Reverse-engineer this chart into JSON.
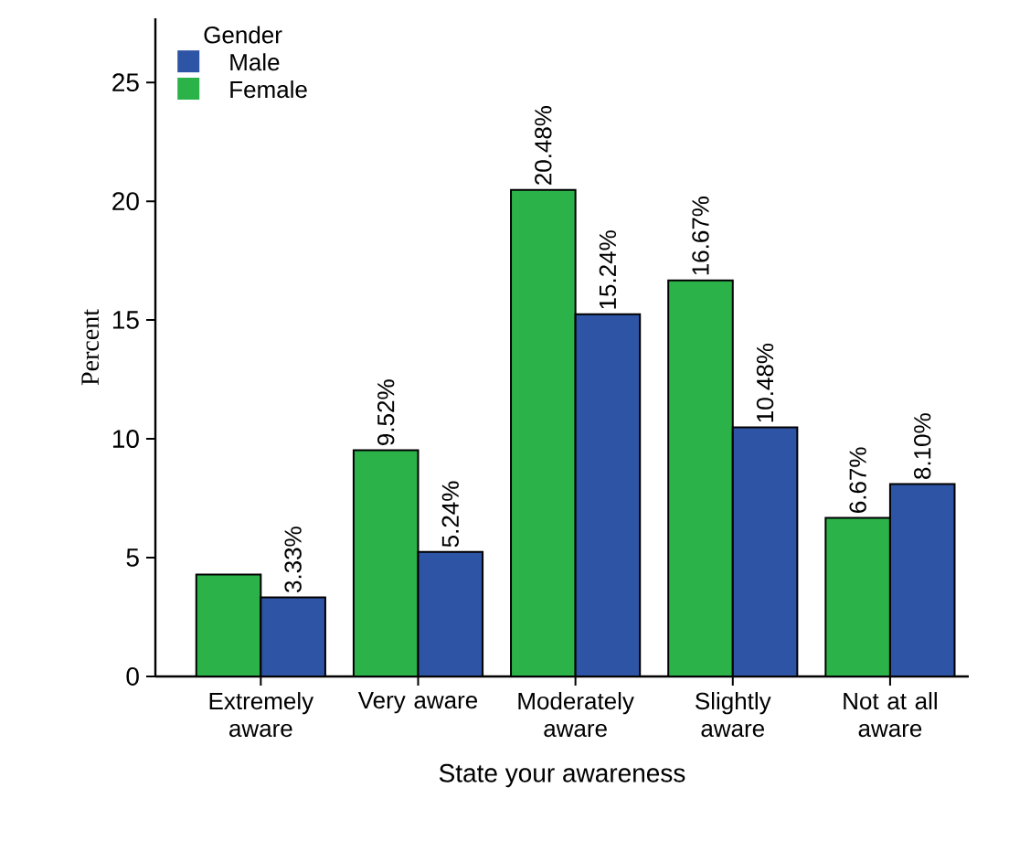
{
  "chart_data": {
    "type": "bar",
    "xlabel": "State your awareness",
    "ylabel": "Percent",
    "legend_title": "Gender",
    "legend": "top left",
    "categories": [
      "Extremely aware",
      "Very aware",
      "Moderately aware",
      "Slightly aware",
      "Not at all aware"
    ],
    "series": [
      {
        "name": "Female",
        "color": "#2bb34a",
        "values": [
          4.29,
          9.52,
          20.48,
          16.67,
          6.67
        ],
        "value_labels": [
          null,
          "9.52%",
          "20.48%",
          "16.67%",
          "6.67%"
        ]
      },
      {
        "name": "Male",
        "color": "#2e54a5",
        "values": [
          3.33,
          5.24,
          15.24,
          10.48,
          8.1
        ],
        "value_labels": [
          "3.33%",
          "5.24%",
          "15.24%",
          "10.48%",
          "8.10%"
        ]
      }
    ],
    "ylim": [
      0,
      27.7
    ],
    "yticks": [
      0,
      5,
      10,
      15,
      20,
      25
    ]
  }
}
